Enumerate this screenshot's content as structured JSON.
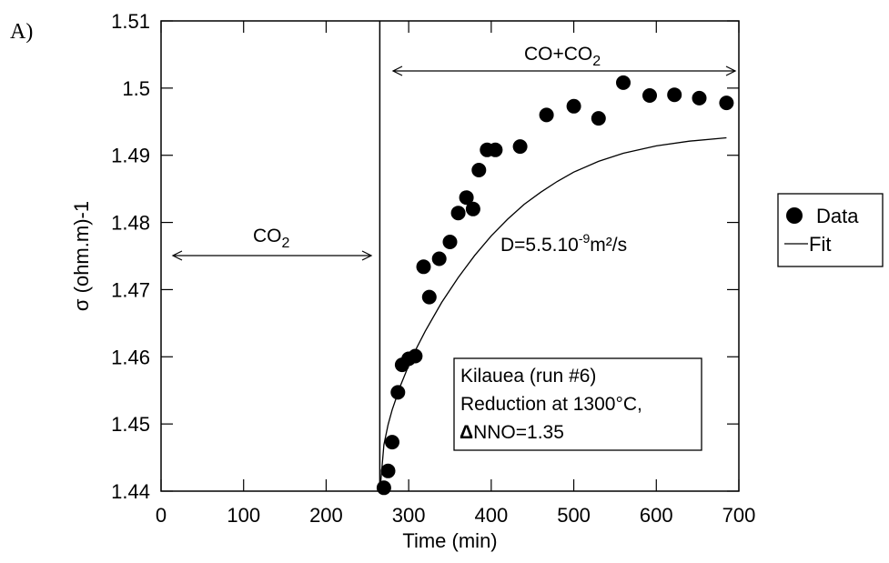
{
  "panel_label": "A)",
  "chart_data": {
    "type": "scatter",
    "xlabel": "Time (min)",
    "ylabel": "σ (ohm.m)-1",
    "xlim": [
      0,
      700
    ],
    "ylim": [
      1.44,
      1.51
    ],
    "x_ticks": [
      "0",
      "100",
      "200",
      "300",
      "400",
      "500",
      "600",
      "700"
    ],
    "y_ticks": [
      "1.44",
      "1.45",
      "1.46",
      "1.47",
      "1.48",
      "1.49",
      "1.5",
      "1.51"
    ],
    "grid": false,
    "legend_position": "right",
    "series": [
      {
        "name": "Data",
        "kind": "points",
        "x": [
          270,
          275,
          280,
          287,
          292,
          300,
          308,
          318,
          325,
          337,
          350,
          360,
          370,
          378,
          385,
          395,
          405,
          435,
          467,
          500,
          530,
          560,
          592,
          622,
          652,
          685
        ],
        "y": [
          1.4405,
          1.443,
          1.4473,
          1.4547,
          1.4588,
          1.4597,
          1.4601,
          1.4734,
          1.4689,
          1.4746,
          1.4771,
          1.4814,
          1.4837,
          1.482,
          1.4878,
          1.4908,
          1.4908,
          1.4913,
          1.496,
          1.4973,
          1.4955,
          1.5008,
          1.4989,
          1.499,
          1.4985,
          1.4978
        ]
      },
      {
        "name": "Fit",
        "kind": "line",
        "x": [
          265,
          270,
          275,
          280,
          290,
          300,
          310,
          320,
          340,
          360,
          380,
          400,
          420,
          440,
          460,
          480,
          500,
          530,
          560,
          600,
          640,
          685
        ],
        "y": [
          1.4397,
          1.4469,
          1.4499,
          1.4521,
          1.4557,
          1.4587,
          1.4614,
          1.4638,
          1.4681,
          1.4718,
          1.4751,
          1.478,
          1.4805,
          1.4827,
          1.4845,
          1.4861,
          1.4875,
          1.4891,
          1.4903,
          1.4914,
          1.4921,
          1.4926
        ]
      }
    ],
    "vertical_line_x": 265,
    "annotations": {
      "co2_label": "CO",
      "co2_sub": "2",
      "co_co2_label": "CO+CO",
      "co_co2_sub": "2",
      "diffusion_prefix": "D=5.5.10",
      "diffusion_exp": "-9",
      "diffusion_unit": "m²/s",
      "box_line1": "Kilauea (run #6)",
      "box_line2": "Reduction at 1300°C,",
      "box_line3": "NNO=1.35",
      "box_delta": "Δ"
    }
  }
}
